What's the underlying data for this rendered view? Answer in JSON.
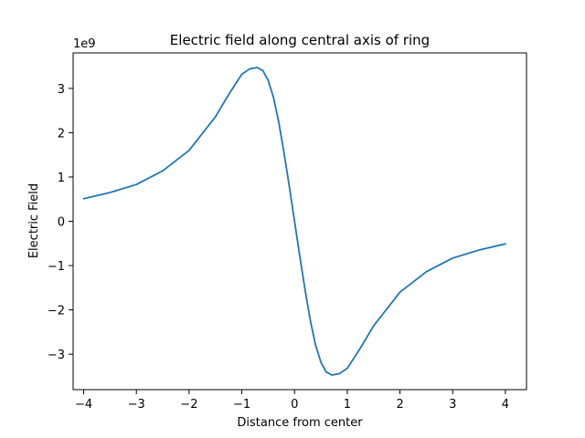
{
  "chart_data": {
    "type": "line",
    "title": "Electric field along central axis of ring",
    "xlabel": "Distance from center",
    "ylabel": "Electric Field",
    "y_offset_label": "1e9",
    "xlim": [
      -4.2,
      4.4
    ],
    "ylim": [
      -3.8,
      3.8
    ],
    "xticks": [
      -4,
      -3,
      -2,
      -1,
      0,
      1,
      2,
      3,
      4
    ],
    "xtick_labels": [
      "−4",
      "−3",
      "−2",
      "−1",
      "0",
      "1",
      "2",
      "3",
      "4"
    ],
    "yticks": [
      -3,
      -2,
      -1,
      0,
      1,
      2,
      3
    ],
    "ytick_labels": [
      "−3",
      "−2",
      "−1",
      "0",
      "1",
      "2",
      "3"
    ],
    "grid": false,
    "series": [
      {
        "color": "#1f77b4",
        "x": [
          -4,
          -3.5,
          -3,
          -2.5,
          -2,
          -1.5,
          -1.25,
          -1,
          -0.85,
          -0.7071,
          -0.6,
          -0.5,
          -0.4,
          -0.3,
          -0.2,
          -0.1,
          0,
          0.1,
          0.2,
          0.3,
          0.4,
          0.5,
          0.6,
          0.7071,
          0.85,
          1,
          1.25,
          1.5,
          2,
          2.5,
          3,
          3.5,
          4
        ],
        "y": [
          0.51,
          0.65,
          0.83,
          1.14,
          1.6,
          2.36,
          2.86,
          3.32,
          3.44,
          3.47,
          3.4,
          3.18,
          2.8,
          2.24,
          1.55,
          0.79,
          0,
          -0.79,
          -1.55,
          -2.24,
          -2.8,
          -3.18,
          -3.4,
          -3.47,
          -3.44,
          -3.32,
          -2.86,
          -2.36,
          -1.6,
          -1.14,
          -0.83,
          -0.65,
          -0.51
        ]
      }
    ]
  }
}
